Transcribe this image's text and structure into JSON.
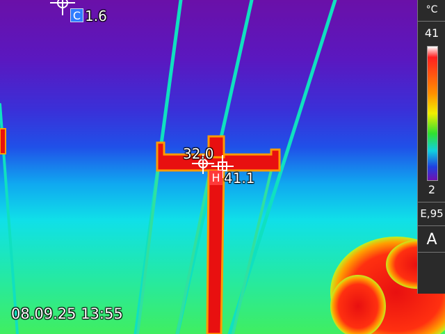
{
  "readouts": {
    "cold_spot": {
      "badge": "C",
      "value": "1.6"
    },
    "hot_spot": {
      "badge": "H",
      "value": "41.1"
    },
    "center_spot": {
      "value": "32.0"
    }
  },
  "timestamp": "08.09.25 13:55",
  "scale": {
    "unit": "°C",
    "max": "41",
    "min": "2",
    "emissivity": "E,95",
    "mode": "A"
  },
  "palette": {
    "cold": "#6a10a8",
    "sky_blue": "#2040e0",
    "cyan": "#10e0e8",
    "green": "#40ee60",
    "hot": "#e81010"
  },
  "icons": {
    "cold_crosshair": "crosshair-icon",
    "hot_crosshair": "crosshair-icon",
    "center_crosshair": "crosshair-icon"
  }
}
